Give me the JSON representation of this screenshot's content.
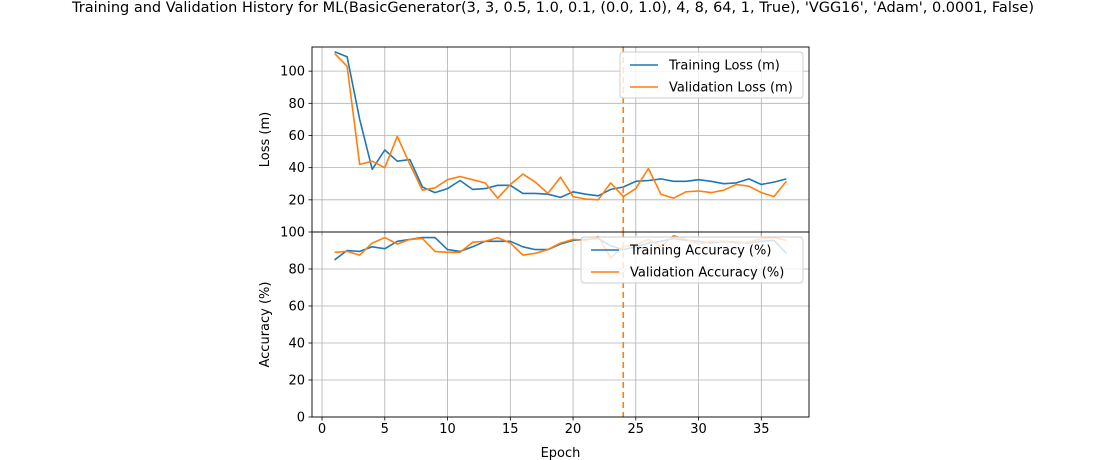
{
  "figure": {
    "title": "Training and Validation History for ML(BasicGenerator(3, 3, 0.5, 1.0, 0.1, (0.0, 1.0), 4, 8, 64, 1, True), 'VGG16', 'Adam', 0.0001, False)"
  },
  "colors": {
    "training": "#1f77b4",
    "validation": "#ff7f0e",
    "grid": "#b0b0b0",
    "marker_line": "#ff7f0e"
  },
  "chart_data": [
    {
      "type": "line",
      "ylabel": "Loss (m)",
      "xlabel": "",
      "xlim": [
        -0.8,
        38.8
      ],
      "ylim": [
        0,
        115
      ],
      "x_ticks": [
        0,
        5,
        10,
        15,
        20,
        25,
        30,
        35
      ],
      "y_ticks": [
        20,
        40,
        60,
        80,
        100
      ],
      "grid": true,
      "legend_position": "top-right",
      "vertical_marker": {
        "x": 24,
        "style": "dashed"
      },
      "x": [
        1,
        2,
        3,
        4,
        5,
        6,
        7,
        8,
        9,
        10,
        11,
        12,
        13,
        14,
        15,
        16,
        17,
        18,
        19,
        20,
        21,
        22,
        23,
        24,
        25,
        26,
        27,
        28,
        29,
        30,
        31,
        32,
        33,
        34,
        35,
        36,
        37
      ],
      "series": [
        {
          "name": "Training Loss (m)",
          "color_key": "training",
          "values": [
            112,
            109,
            70,
            39,
            51,
            44,
            45,
            28,
            24.5,
            27,
            32,
            26.5,
            27,
            29,
            29,
            24,
            24,
            23.5,
            21.5,
            25,
            23.5,
            22.5,
            26.5,
            28,
            31.5,
            32,
            33,
            31.5,
            31.5,
            32.5,
            31.5,
            30,
            30.5,
            33,
            29.5,
            31,
            33
          ]
        },
        {
          "name": "Validation Loss (m)",
          "color_key": "validation",
          "values": [
            111,
            103,
            42,
            44,
            40,
            59.5,
            42,
            26,
            27.5,
            32.5,
            34.5,
            32.5,
            30.5,
            21,
            29.5,
            36,
            31,
            24,
            34,
            22,
            20.5,
            20,
            30.5,
            22,
            27,
            39.5,
            23.5,
            21,
            25,
            25.5,
            24.5,
            26,
            29.5,
            28.5,
            24.5,
            22,
            31.5
          ]
        }
      ]
    },
    {
      "type": "line",
      "ylabel": "Accuracy (%)",
      "xlabel": "Epoch",
      "xlim": [
        -0.8,
        38.8
      ],
      "ylim": [
        0,
        100
      ],
      "x_ticks": [
        0,
        5,
        10,
        15,
        20,
        25,
        30,
        35
      ],
      "y_ticks": [
        0,
        20,
        40,
        60,
        80,
        100
      ],
      "grid": true,
      "legend_position": "top-right",
      "vertical_marker": {
        "x": 24,
        "style": "dashed"
      },
      "x": [
        1,
        2,
        3,
        4,
        5,
        6,
        7,
        8,
        9,
        10,
        11,
        12,
        13,
        14,
        15,
        16,
        17,
        18,
        19,
        20,
        21,
        22,
        23,
        24,
        25,
        26,
        27,
        28,
        29,
        30,
        31,
        32,
        33,
        34,
        35,
        36,
        37
      ],
      "series": [
        {
          "name": "Training Accuracy (%)",
          "color_key": "training",
          "values": [
            85,
            90,
            89.5,
            92,
            91,
            95,
            96,
            97,
            97,
            90.5,
            89.5,
            92,
            95,
            95,
            95,
            92,
            90.5,
            90.5,
            93.5,
            95.5,
            96,
            96.5,
            92.5,
            90.5,
            92,
            94,
            95,
            96.5,
            95.5,
            95,
            94,
            95,
            94.5,
            94,
            95,
            95.5,
            88.5
          ]
        },
        {
          "name": "Validation Accuracy (%)",
          "color_key": "validation",
          "values": [
            89,
            89.5,
            87.5,
            94,
            97,
            93.5,
            96,
            96.5,
            89.5,
            89,
            89,
            94.5,
            95,
            97,
            94,
            87.5,
            88.5,
            90.5,
            94,
            96,
            95.5,
            97.5,
            86,
            92,
            93,
            96,
            92,
            98,
            96,
            93.5,
            95,
            95,
            94,
            94.5,
            96.5,
            97,
            95.5
          ]
        }
      ]
    }
  ]
}
